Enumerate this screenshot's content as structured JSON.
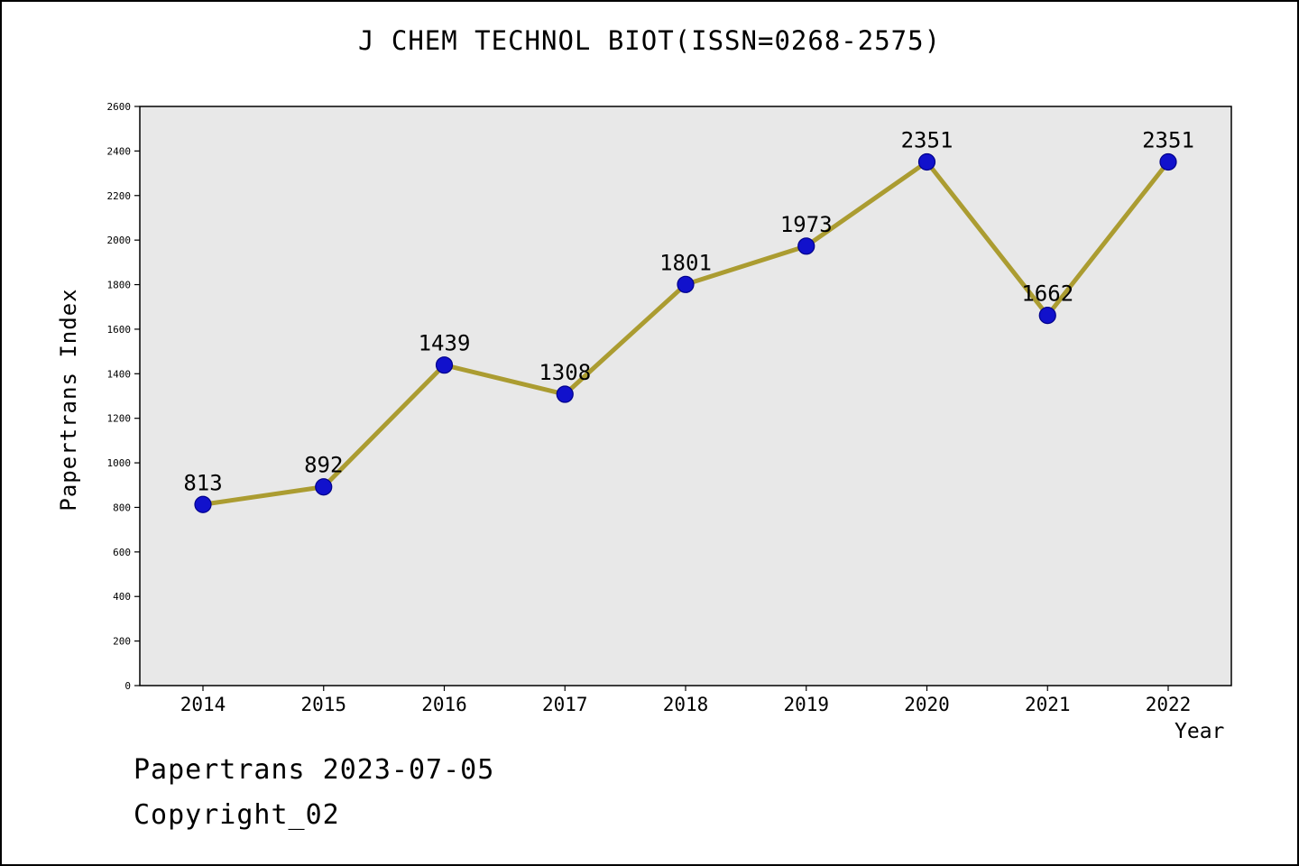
{
  "footer": {
    "date_line": "Papertrans 2023-07-05",
    "copyright_line": "Copyright_02"
  },
  "chart_data": {
    "type": "line",
    "title": "J CHEM TECHNOL BIOT(ISSN=0268-2575)",
    "xlabel": "Year",
    "ylabel": "Papertrans Index",
    "x": [
      "2014",
      "2015",
      "2016",
      "2017",
      "2018",
      "2019",
      "2020",
      "2021",
      "2022"
    ],
    "values": [
      813,
      892,
      1439,
      1308,
      1801,
      1973,
      2351,
      1662,
      2351
    ],
    "ylim": [
      0,
      2600
    ],
    "ytick_step": 200,
    "grid": false,
    "legend_position": "none",
    "line_color": "#ab9c31",
    "marker_color": "#1111cc",
    "marker_edge_color": "#00008b",
    "plot_bg": "#e8e8e8",
    "axis_color": "#000000"
  }
}
